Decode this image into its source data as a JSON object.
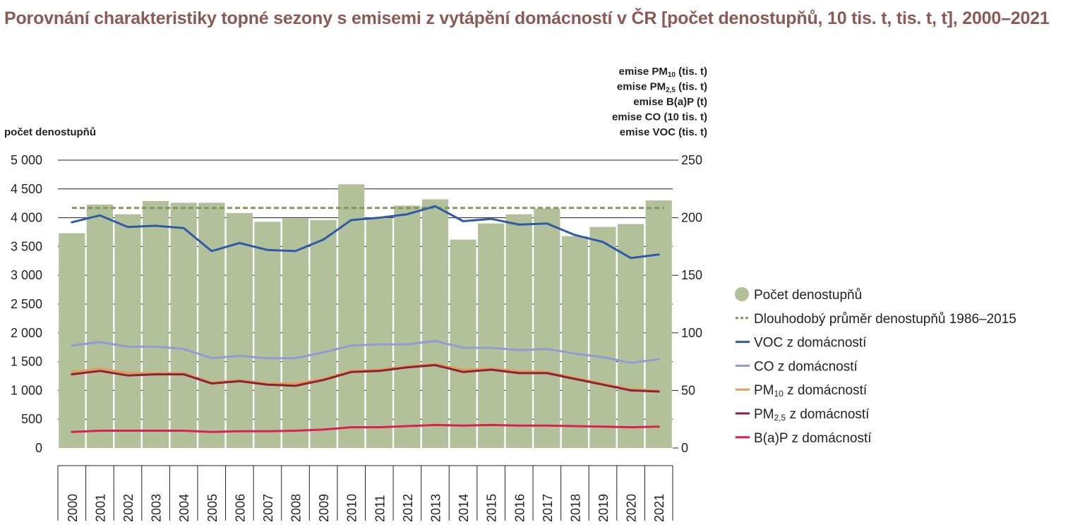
{
  "title": "Porovnání charakteristiky topné sezony s emisemi z vytápění domácností v ČR [počet denostupňů,  10 tis. t, tis. t, t], 2000–2021",
  "chart_data": {
    "type": "bar+line",
    "categories": [
      "2000",
      "2001",
      "2002",
      "2003",
      "2004",
      "2005",
      "2006",
      "2007",
      "2008",
      "2009",
      "2010",
      "2011",
      "2012",
      "2013",
      "2014",
      "2015",
      "2016",
      "2017",
      "2018",
      "2019",
      "2020",
      "2021"
    ],
    "left_axis": {
      "label": "počet denostupňů",
      "ylim": [
        0,
        5000
      ],
      "ticks": [
        0,
        500,
        1000,
        1500,
        2000,
        2500,
        3000,
        3500,
        4000,
        4500,
        5000
      ],
      "tick_labels": [
        "0",
        "500",
        "1 000",
        "1 500",
        "2 000",
        "2 500",
        "3 000",
        "3 500",
        "4 000",
        "4 500",
        "5 000"
      ]
    },
    "right_axis": {
      "label_lines": [
        {
          "prefix": "emise PM",
          "sub": "10",
          "suffix": " (tis. t)"
        },
        {
          "prefix": "emise PM",
          "sub": "2,5",
          "suffix": " (tis. t)"
        },
        {
          "prefix": "emise B(a)P (t)",
          "sub": "",
          "suffix": ""
        },
        {
          "prefix": "emise CO (10 tis. t)",
          "sub": "",
          "suffix": ""
        },
        {
          "prefix": "emise VOC (tis. t)",
          "sub": "",
          "suffix": ""
        }
      ],
      "ylim": [
        0,
        250
      ],
      "ticks": [
        0,
        50,
        100,
        150,
        200,
        250
      ],
      "tick_labels": [
        "0",
        "50",
        "100",
        "150",
        "200",
        "250"
      ]
    },
    "grid": true,
    "legend_position": "right",
    "series": [
      {
        "key": "degree_days",
        "name": "Počet denostupňů",
        "kind": "bar",
        "axis": "left",
        "color": "#b3c19b",
        "values": [
          3730,
          4230,
          4060,
          4290,
          4260,
          4260,
          4080,
          3930,
          3990,
          3960,
          4580,
          3990,
          4210,
          4320,
          3620,
          3900,
          4060,
          4160,
          3680,
          3840,
          3890,
          4300
        ]
      },
      {
        "key": "long_term_avg",
        "name": "Dlouhodobý průměr denostupňů 1986–2015",
        "name_sub": "",
        "name_suffix": "",
        "kind": "dashed",
        "axis": "left",
        "color": "#8a9460",
        "values": [
          4170,
          4170,
          4170,
          4170,
          4170,
          4170,
          4170,
          4170,
          4170,
          4170,
          4170,
          4170,
          4170,
          4170,
          4170,
          4170,
          4170,
          4170,
          4170,
          4170,
          4170,
          4170
        ]
      },
      {
        "key": "voc",
        "name": "VOC z domácností",
        "name_sub": "",
        "name_suffix": "",
        "kind": "line",
        "axis": "right",
        "color": "#2e5aa8",
        "values": [
          196,
          202,
          192,
          193,
          191,
          171,
          178,
          172,
          171,
          181,
          198,
          200,
          203,
          210,
          197,
          199,
          194,
          195,
          185,
          179,
          165,
          168
        ]
      },
      {
        "key": "co",
        "name": "CO z domácností",
        "name_sub": "",
        "name_suffix": "",
        "kind": "line",
        "axis": "right",
        "color": "#929cd1",
        "values": [
          89,
          92,
          88,
          88,
          86,
          78,
          80,
          78,
          78,
          83,
          89,
          90,
          90,
          93,
          87,
          87,
          85,
          86,
          82,
          79,
          74,
          77
        ]
      },
      {
        "key": "pm10",
        "name": "PM",
        "name_sub": "10",
        "name_suffix": " z domácností",
        "kind": "line",
        "axis": "right",
        "color": "#e39c5c",
        "values": [
          66,
          69,
          65,
          65,
          65,
          57,
          59,
          56,
          56,
          60,
          67,
          68,
          71,
          73,
          68,
          69,
          67,
          66,
          61,
          56,
          51,
          50
        ]
      },
      {
        "key": "pm25",
        "name": "PM",
        "name_sub": "2,5",
        "name_suffix": " z domácností",
        "kind": "line",
        "axis": "right",
        "color": "#8c2238",
        "values": [
          64,
          67,
          63,
          64,
          64,
          56,
          58,
          55,
          54,
          59,
          66,
          67,
          70,
          72,
          66,
          68,
          65,
          65,
          60,
          55,
          50,
          49
        ]
      },
      {
        "key": "bap",
        "name": "B(a)P z domácností",
        "name_sub": "",
        "name_suffix": "",
        "kind": "line",
        "axis": "right",
        "color": "#d9214e",
        "values": [
          14,
          15,
          15,
          15,
          15,
          14,
          14.5,
          14.5,
          15,
          16,
          18,
          18,
          19,
          20,
          19.5,
          20,
          19.5,
          19.5,
          19,
          18.5,
          18,
          18.5
        ]
      }
    ]
  }
}
